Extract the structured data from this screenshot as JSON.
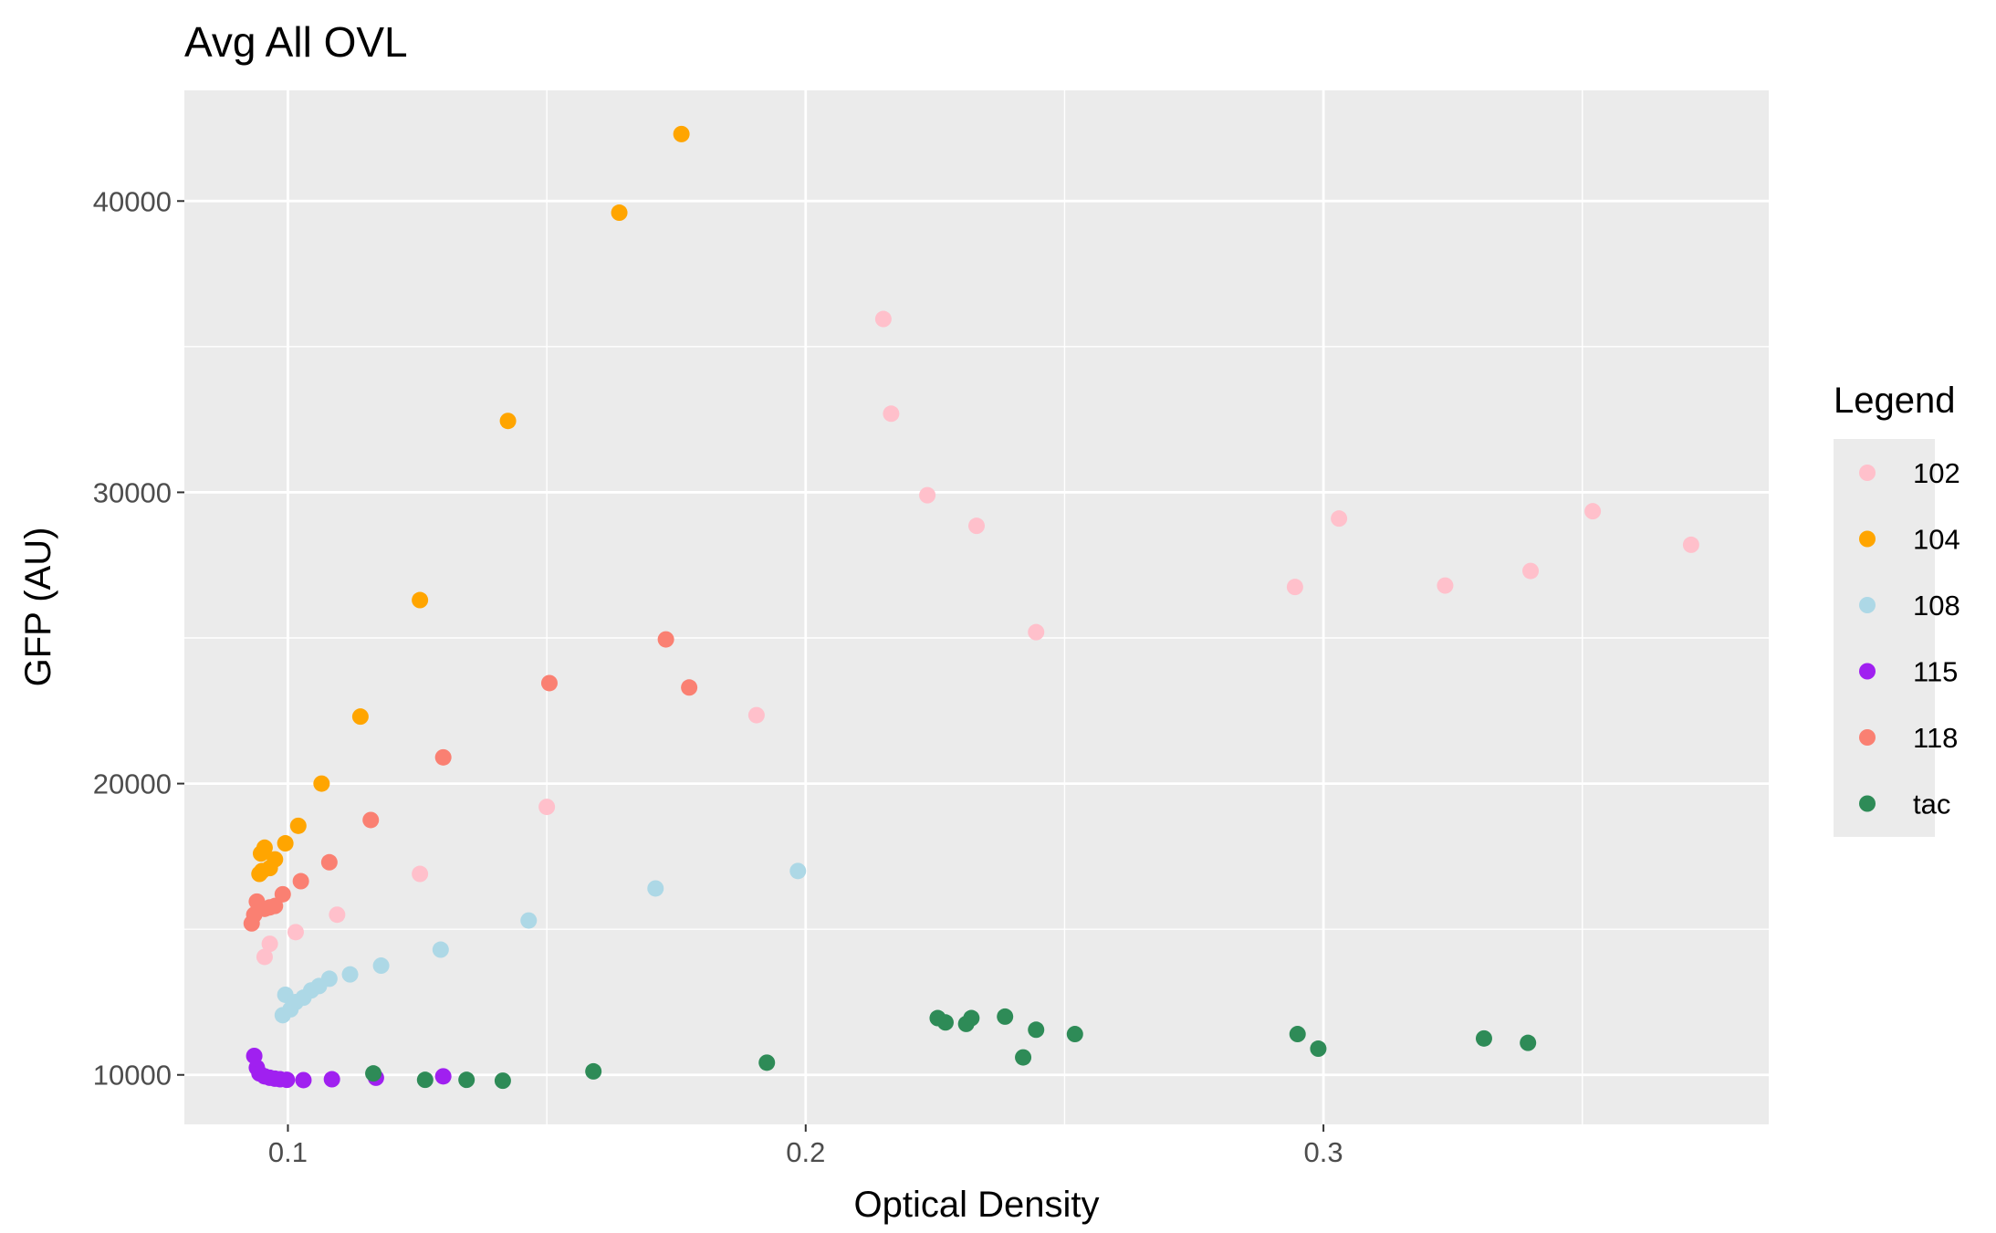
{
  "chart_data": {
    "type": "scatter",
    "title": "Avg All OVL",
    "xlabel": "Optical Density",
    "ylabel": "GFP (AU)",
    "xlim": [
      0.08,
      0.386
    ],
    "ylim": [
      8300,
      43800
    ],
    "x_ticks": [
      0.1,
      0.2,
      0.3
    ],
    "x_tick_labels": [
      "0.1",
      "0.2",
      "0.3"
    ],
    "y_ticks": [
      10000,
      20000,
      30000,
      40000
    ],
    "y_tick_labels": [
      "10000",
      "20000",
      "30000",
      "40000"
    ],
    "x_minor": [
      0.15,
      0.25,
      0.35
    ],
    "y_minor": [
      15000,
      25000,
      35000
    ],
    "grid": true,
    "legend": {
      "title": "Legend",
      "position": "right"
    },
    "series": [
      {
        "name": "102",
        "color": "#ffc0cb",
        "points": [
          [
            0.0955,
            14050
          ],
          [
            0.0965,
            14500
          ],
          [
            0.1015,
            14900
          ],
          [
            0.1095,
            15500
          ],
          [
            0.1255,
            16900
          ],
          [
            0.15,
            19200
          ],
          [
            0.1905,
            22350
          ],
          [
            0.215,
            35950
          ],
          [
            0.2165,
            32700
          ],
          [
            0.2235,
            29900
          ],
          [
            0.233,
            28850
          ],
          [
            0.2445,
            25200
          ],
          [
            0.2945,
            26750
          ],
          [
            0.303,
            29100
          ],
          [
            0.3235,
            26800
          ],
          [
            0.34,
            27300
          ],
          [
            0.352,
            29350
          ],
          [
            0.371,
            28200
          ]
        ]
      },
      {
        "name": "104",
        "color": "#ffa500",
        "points": [
          [
            0.0945,
            16900
          ],
          [
            0.095,
            17000
          ],
          [
            0.0948,
            17600
          ],
          [
            0.0955,
            17800
          ],
          [
            0.0965,
            17100
          ],
          [
            0.0975,
            17400
          ],
          [
            0.0995,
            17950
          ],
          [
            0.102,
            18550
          ],
          [
            0.1065,
            20000
          ],
          [
            0.114,
            22300
          ],
          [
            0.1255,
            26300
          ],
          [
            0.1425,
            32450
          ],
          [
            0.164,
            39600
          ],
          [
            0.176,
            42300
          ]
        ]
      },
      {
        "name": "108",
        "color": "#add8e6",
        "points": [
          [
            0.099,
            12050
          ],
          [
            0.0995,
            12750
          ],
          [
            0.1005,
            12250
          ],
          [
            0.1015,
            12500
          ],
          [
            0.103,
            12650
          ],
          [
            0.1045,
            12900
          ],
          [
            0.106,
            13050
          ],
          [
            0.108,
            13300
          ],
          [
            0.112,
            13450
          ],
          [
            0.118,
            13750
          ],
          [
            0.1295,
            14300
          ],
          [
            0.1465,
            15300
          ],
          [
            0.171,
            16400
          ],
          [
            0.1985,
            17000
          ]
        ]
      },
      {
        "name": "115",
        "color": "#a020f0",
        "points": [
          [
            0.0935,
            10650
          ],
          [
            0.094,
            10250
          ],
          [
            0.0945,
            10050
          ],
          [
            0.0955,
            9950
          ],
          [
            0.0965,
            9900
          ],
          [
            0.0975,
            9870
          ],
          [
            0.0985,
            9850
          ],
          [
            0.0998,
            9830
          ],
          [
            0.103,
            9820
          ],
          [
            0.1085,
            9850
          ],
          [
            0.117,
            9900
          ],
          [
            0.13,
            9950
          ]
        ]
      },
      {
        "name": "118",
        "color": "#fa8072",
        "points": [
          [
            0.093,
            15200
          ],
          [
            0.0935,
            15500
          ],
          [
            0.094,
            15950
          ],
          [
            0.0955,
            15700
          ],
          [
            0.0965,
            15750
          ],
          [
            0.0975,
            15800
          ],
          [
            0.099,
            16200
          ],
          [
            0.1025,
            16650
          ],
          [
            0.108,
            17300
          ],
          [
            0.116,
            18750
          ],
          [
            0.13,
            20900
          ],
          [
            0.1505,
            23450
          ],
          [
            0.173,
            24950
          ],
          [
            0.1775,
            23300
          ]
        ]
      },
      {
        "name": "tac",
        "color": "#2e8b57",
        "points": [
          [
            0.1165,
            10050
          ],
          [
            0.1265,
            9830
          ],
          [
            0.1345,
            9830
          ],
          [
            0.1415,
            9800
          ],
          [
            0.159,
            10120
          ],
          [
            0.1925,
            10420
          ],
          [
            0.2255,
            11950
          ],
          [
            0.227,
            11800
          ],
          [
            0.231,
            11750
          ],
          [
            0.232,
            11950
          ],
          [
            0.2385,
            12000
          ],
          [
            0.242,
            10600
          ],
          [
            0.2445,
            11550
          ],
          [
            0.252,
            11400
          ],
          [
            0.295,
            11400
          ],
          [
            0.299,
            10900
          ],
          [
            0.331,
            11250
          ],
          [
            0.3395,
            11100
          ]
        ]
      }
    ]
  }
}
